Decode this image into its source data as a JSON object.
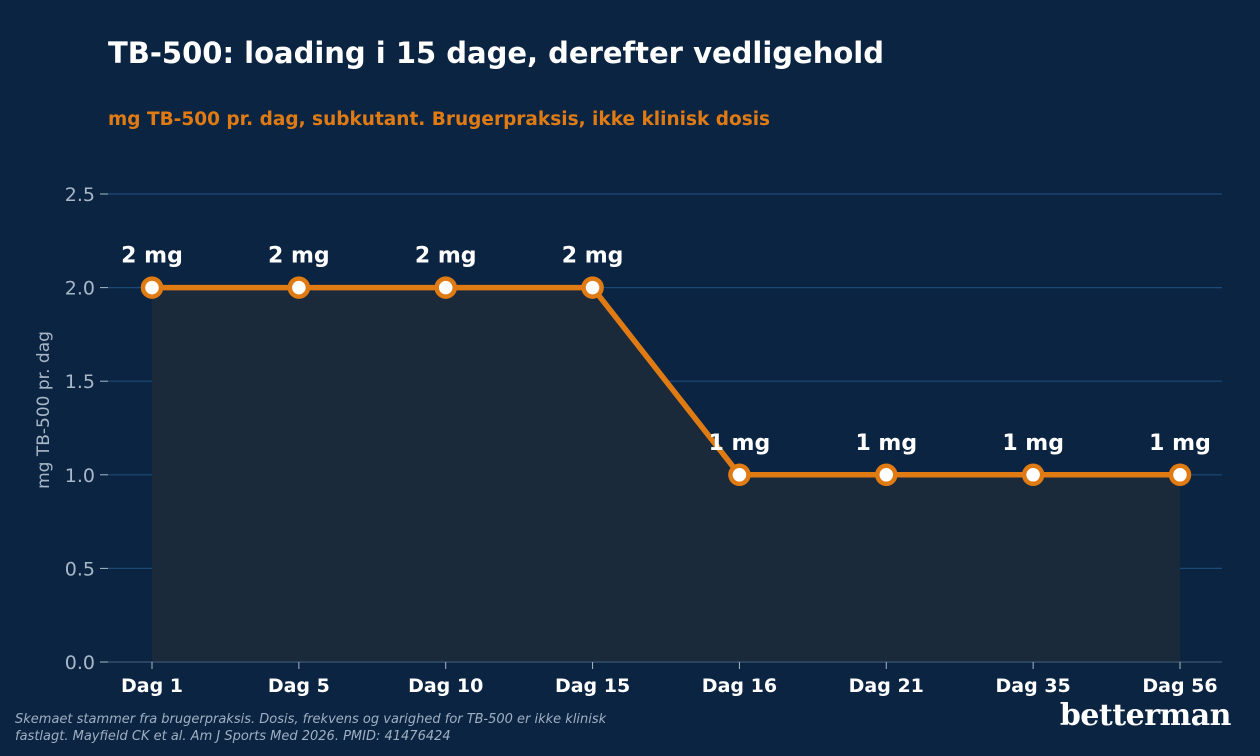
{
  "chart_data": {
    "type": "line",
    "title": "TB-500: loading i 15 dage, derefter vedligehold",
    "subtitle": "mg TB-500 pr. dag, subkutant. Brugerpraksis, ikke klinisk dosis",
    "xlabel": "",
    "ylabel": "mg TB-500 pr. dag",
    "categories": [
      "Dag 1",
      "Dag 5",
      "Dag 10",
      "Dag 15",
      "Dag 16",
      "Dag 21",
      "Dag 35",
      "Dag 56"
    ],
    "series": [
      {
        "values": [
          2,
          2,
          2,
          2,
          1,
          1,
          1,
          1
        ],
        "data_labels": [
          "2 mg",
          "2 mg",
          "2 mg",
          "2 mg",
          "1 mg",
          "1 mg",
          "1 mg",
          "1 mg"
        ]
      }
    ],
    "ylim": [
      0,
      2.5
    ],
    "yticks": [
      0,
      0.5,
      1,
      1.5,
      2,
      2.5
    ],
    "ytick_labels": [
      "0.0",
      "0.5",
      "1.0",
      "1.5",
      "2.0",
      "2.5"
    ],
    "grid": true,
    "area_fill": true,
    "colors": {
      "background": "#0b2441",
      "line": "#e07b14",
      "marker_fill": "#ffffff",
      "area": "#1b2a3b",
      "grid": "#1c4a78",
      "tick_text": "#a9b8c8",
      "label_text": "#ffffff"
    }
  },
  "footnote": "Skemaet stammer fra brugerpraksis. Dosis, frekvens og varighed for TB-500 er ikke klinisk fastlagt. Mayfield CK et al. Am J Sports Med 2026. PMID: 41476424",
  "brand": "betterman"
}
